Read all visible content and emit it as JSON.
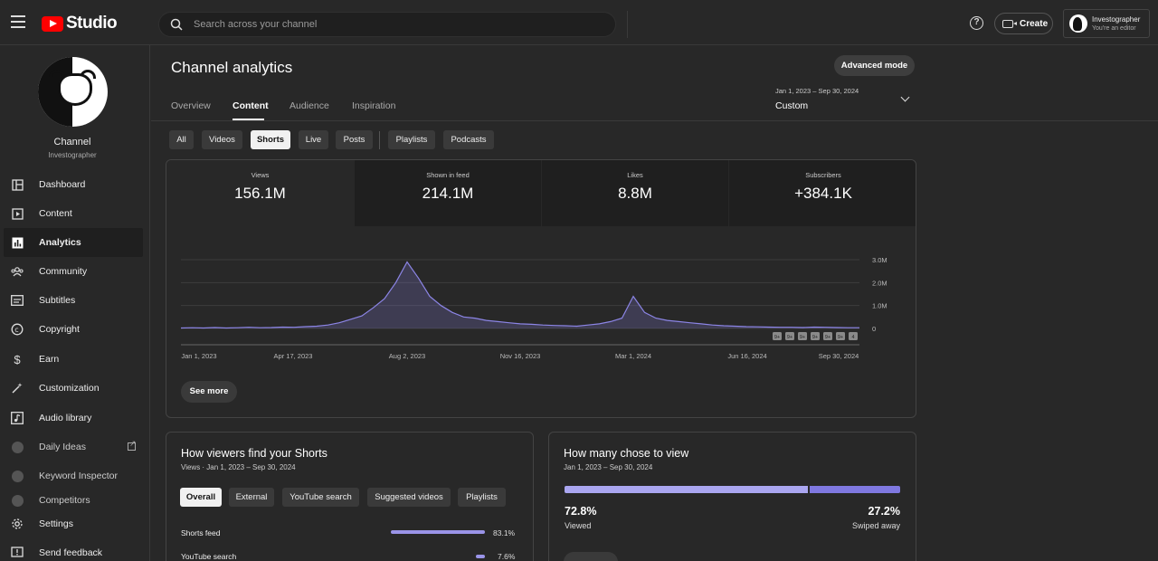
{
  "app": {
    "logo_text": "Studio",
    "search_placeholder": "Search across your channel",
    "create_label": "Create",
    "account_name": "Investographer",
    "account_role": "You're an editor"
  },
  "channel": {
    "name": "Channel",
    "handle": "Investographer"
  },
  "sidebar": {
    "items": [
      {
        "label": "Dashboard",
        "icon": "dashboard-icon"
      },
      {
        "label": "Content",
        "icon": "content-icon"
      },
      {
        "label": "Analytics",
        "icon": "analytics-icon",
        "active": true
      },
      {
        "label": "Community",
        "icon": "community-icon"
      },
      {
        "label": "Subtitles",
        "icon": "subtitles-icon"
      },
      {
        "label": "Copyright",
        "icon": "copyright-icon"
      },
      {
        "label": "Earn",
        "icon": "dollar-icon"
      },
      {
        "label": "Customization",
        "icon": "magic-wand-icon"
      },
      {
        "label": "Audio library",
        "icon": "audio-library-icon"
      },
      {
        "label": "Daily Ideas",
        "icon": "extension-icon"
      },
      {
        "label": "Keyword Inspector",
        "icon": "extension-icon"
      },
      {
        "label": "Competitors",
        "icon": "extension-icon"
      }
    ],
    "bottom": [
      {
        "label": "Settings",
        "icon": "gear-icon"
      },
      {
        "label": "Send feedback",
        "icon": "feedback-icon"
      }
    ]
  },
  "page": {
    "title": "Channel analytics",
    "advanced_mode": "Advanced mode",
    "tabs": [
      "Overview",
      "Content",
      "Audience",
      "Inspiration"
    ],
    "active_tab": "Content",
    "date_range": "Jan 1, 2023 – Sep 30, 2024",
    "date_label": "Custom",
    "content_chips": [
      "All",
      "Videos",
      "Shorts",
      "Live",
      "Posts",
      "Playlists",
      "Podcasts"
    ],
    "active_chip": "Shorts"
  },
  "metrics": [
    {
      "label": "Views",
      "value": "156.1M"
    },
    {
      "label": "Shown in feed",
      "value": "214.1M"
    },
    {
      "label": "Likes",
      "value": "8.8M"
    },
    {
      "label": "Subscribers",
      "value": "+384.1K"
    }
  ],
  "chart_data": {
    "type": "area",
    "series": [
      {
        "values": [
          0.02,
          0.03,
          0.02,
          0.04,
          0.02,
          0.03,
          0.05,
          0.03,
          0.04,
          0.06,
          0.05,
          0.08,
          0.1,
          0.15,
          0.25,
          0.4,
          0.55,
          0.9,
          1.3,
          2.0,
          2.9,
          2.2,
          1.4,
          1.0,
          0.7,
          0.5,
          0.45,
          0.35,
          0.3,
          0.25,
          0.2,
          0.18,
          0.15,
          0.13,
          0.12,
          0.1,
          0.15,
          0.2,
          0.3,
          0.45,
          1.4,
          0.7,
          0.45,
          0.35,
          0.3,
          0.25,
          0.2,
          0.15,
          0.12,
          0.1,
          0.08,
          0.07,
          0.06,
          0.05,
          0.05,
          0.04,
          0.06,
          0.05,
          0.04,
          0.03,
          0.03
        ]
      }
    ],
    "x_ticks": [
      "Jan 1, 2023",
      "Apr 17, 2023",
      "Aug 2, 2023",
      "Nov 16, 2023",
      "Mar 1, 2024",
      "Jun 16, 2024",
      "Sep 30, 2024"
    ],
    "y_ticks": [
      "0",
      "1.0M",
      "2.0M",
      "3.0M"
    ],
    "ylim": [
      0,
      3.0
    ],
    "grid": true,
    "marker_labels": [
      "9+",
      "9+",
      "9+",
      "9+",
      "9+",
      "9+",
      "4"
    ],
    "color": "#8c85e6"
  },
  "see_more": "See more",
  "find_card": {
    "title": "How viewers find your Shorts",
    "subtitle": "Views · Jan 1, 2023 – Sep 30, 2024",
    "chips": [
      "Overall",
      "External",
      "YouTube search",
      "Suggested videos",
      "Playlists"
    ],
    "active_chip": "Overall",
    "rows": [
      {
        "label": "Shorts feed",
        "pct": "83.1%",
        "value": 0.831
      },
      {
        "label": "YouTube search",
        "pct": "7.6%",
        "value": 0.076
      }
    ]
  },
  "chose_card": {
    "title": "How many chose to view",
    "subtitle": "Jan 1, 2023 – Sep 30, 2024",
    "viewed_pct": "72.8%",
    "viewed_label": "Viewed",
    "viewed_value": 0.728,
    "swiped_pct": "27.2%",
    "swiped_label": "Swiped away"
  }
}
